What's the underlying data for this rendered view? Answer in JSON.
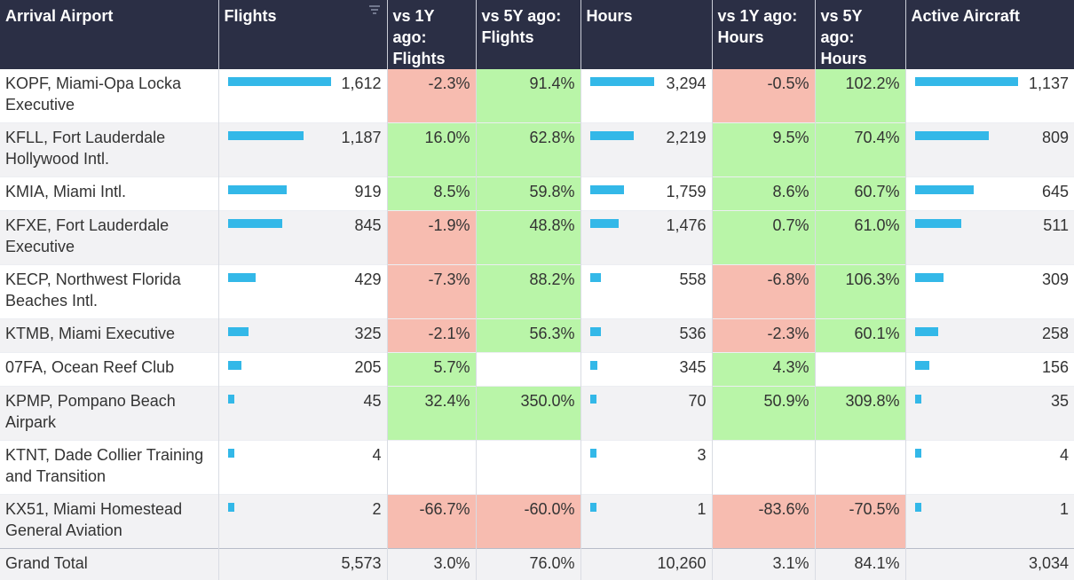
{
  "header": {
    "arrival_airport": "Arrival Airport",
    "flights": "Flights",
    "vs1y_flights": "vs 1Y ago: Flights",
    "vs5y_flights": "vs 5Y ago: Flights",
    "hours": "Hours",
    "vs1y_hours": "vs 1Y ago: Hours",
    "vs5y_hours": "vs 5Y ago: Hours",
    "active_aircraft": "Active Aircraft"
  },
  "colors": {
    "header_bg": "#2b2f45",
    "bar": "#33b8e8",
    "negative": "#f7bcb0",
    "positive": "#b9f5a8"
  },
  "rows": [
    {
      "airport": "KOPF, Miami-Opa Locka Executive",
      "flights": "1,612",
      "f1y": "-2.3%",
      "f5y": "91.4%",
      "hours": "3,294",
      "h1y": "-0.5%",
      "h5y": "102.2%",
      "aircraft": "1,137"
    },
    {
      "airport": "KFLL, Fort Lauderdale Hollywood Intl.",
      "flights": "1,187",
      "f1y": "16.0%",
      "f5y": "62.8%",
      "hours": "2,219",
      "h1y": "9.5%",
      "h5y": "70.4%",
      "aircraft": "809"
    },
    {
      "airport": "KMIA, Miami Intl.",
      "flights": "919",
      "f1y": "8.5%",
      "f5y": "59.8%",
      "hours": "1,759",
      "h1y": "8.6%",
      "h5y": "60.7%",
      "aircraft": "645"
    },
    {
      "airport": "KFXE, Fort Lauderdale Executive",
      "flights": "845",
      "f1y": "-1.9%",
      "f5y": "48.8%",
      "hours": "1,476",
      "h1y": "0.7%",
      "h5y": "61.0%",
      "aircraft": "511"
    },
    {
      "airport": "KECP, Northwest Florida Beaches Intl.",
      "flights": "429",
      "f1y": "-7.3%",
      "f5y": "88.2%",
      "hours": "558",
      "h1y": "-6.8%",
      "h5y": "106.3%",
      "aircraft": "309"
    },
    {
      "airport": "KTMB, Miami Executive",
      "flights": "325",
      "f1y": "-2.1%",
      "f5y": "56.3%",
      "hours": "536",
      "h1y": "-2.3%",
      "h5y": "60.1%",
      "aircraft": "258"
    },
    {
      "airport": "07FA, Ocean Reef Club",
      "flights": "205",
      "f1y": "5.7%",
      "f5y": "",
      "hours": "345",
      "h1y": "4.3%",
      "h5y": "",
      "aircraft": "156"
    },
    {
      "airport": "KPMP, Pompano Beach Airpark",
      "flights": "45",
      "f1y": "32.4%",
      "f5y": "350.0%",
      "hours": "70",
      "h1y": "50.9%",
      "h5y": "309.8%",
      "aircraft": "35"
    },
    {
      "airport": "KTNT, Dade Collier Training and Transition",
      "flights": "4",
      "f1y": "",
      "f5y": "",
      "hours": "3",
      "h1y": "",
      "h5y": "",
      "aircraft": "4"
    },
    {
      "airport": "KX51, Miami Homestead General Aviation",
      "flights": "2",
      "f1y": "-66.7%",
      "f5y": "-60.0%",
      "hours": "1",
      "h1y": "-83.6%",
      "h5y": "-70.5%",
      "aircraft": "1"
    }
  ],
  "total": {
    "label": "Grand Total",
    "flights": "5,573",
    "f1y": "3.0%",
    "f5y": "76.0%",
    "hours": "10,260",
    "h1y": "3.1%",
    "h5y": "84.1%",
    "aircraft": "3,034"
  }
}
